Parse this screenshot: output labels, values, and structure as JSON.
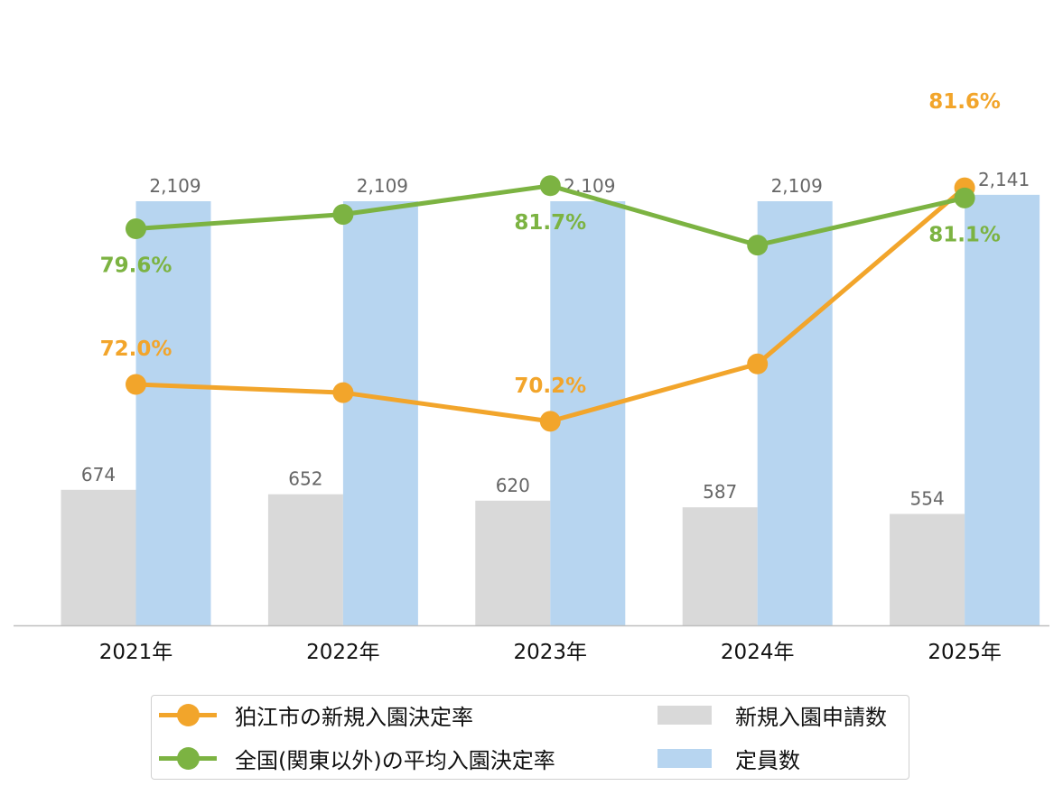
{
  "colors": {
    "applicants": "#d9d9d9",
    "capacity": "#b7d5f0",
    "komae_rate": "#f2a52b",
    "national_rate": "#7cb342",
    "value_label": "#666666",
    "axis_line": "#bfbfbf"
  },
  "legend": {
    "komae_rate": "狛江市の新規入園決定率",
    "national_rate": "全国(関東以外)の平均入園決定率",
    "applicants": "新規入園申請数",
    "capacity": "定員数"
  },
  "chart_data": {
    "type": "bar",
    "categories": [
      "2021年",
      "2022年",
      "2023年",
      "2024年",
      "2025年"
    ],
    "series": [
      {
        "key": "applicants",
        "name": "新規入園申請数",
        "type": "bar",
        "axis": "left",
        "values": [
          674,
          652,
          620,
          587,
          554
        ],
        "labels": [
          "674",
          "652",
          "620",
          "587",
          "554"
        ]
      },
      {
        "key": "capacity",
        "name": "定員数",
        "type": "bar",
        "axis": "left",
        "values": [
          2109,
          2109,
          2109,
          2109,
          2141
        ],
        "labels": [
          "2,109",
          "2,109",
          "2,109",
          "2,109",
          "2,141"
        ]
      },
      {
        "key": "komae_rate",
        "name": "狛江市の新規入園決定率",
        "type": "line",
        "axis": "right",
        "values": [
          72.0,
          71.6,
          70.2,
          73.0,
          81.6
        ],
        "labels": [
          "72.0%",
          "",
          "70.2%",
          "",
          "81.6%"
        ]
      },
      {
        "key": "national_rate",
        "name": "全国(関東以外)の平均入園決定率",
        "type": "line",
        "axis": "right",
        "values": [
          79.6,
          80.3,
          81.7,
          78.8,
          81.1
        ],
        "labels": [
          "79.6%",
          "",
          "81.7%",
          "",
          "81.1%"
        ]
      }
    ],
    "ylim": [
      0,
      2109
    ],
    "y2lim": [
      60,
      86
    ],
    "grid": false,
    "legend_position": "bottom"
  }
}
